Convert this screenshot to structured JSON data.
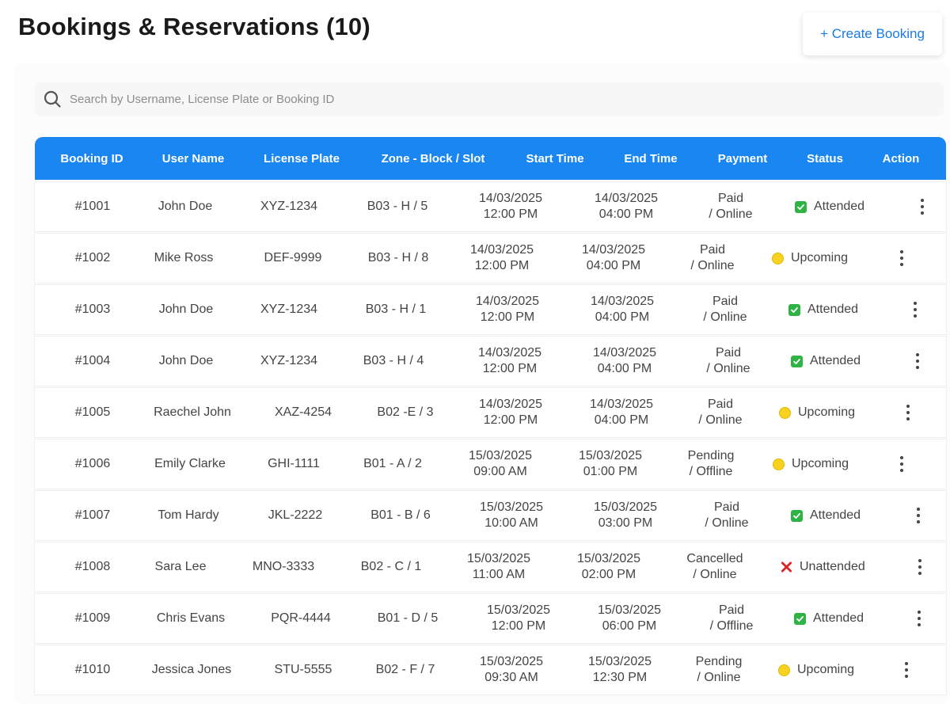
{
  "header": {
    "title": "Bookings & Reservations (10)",
    "create_button": "+ Create Booking"
  },
  "search": {
    "placeholder": "Search by Username, License Plate or Booking ID",
    "value": ""
  },
  "colors": {
    "accent": "#1a86f2",
    "attended": "#2fb344",
    "upcoming": "#f8d21e",
    "unattended": "#e02424"
  },
  "table": {
    "columns": [
      "Booking ID",
      "User Name",
      "License Plate",
      "Zone - Block / Slot",
      "Start Time",
      "End Time",
      "Payment",
      "Status",
      "Action"
    ],
    "rows": [
      {
        "id": "#1001",
        "user": "John Doe",
        "plate": "XYZ-1234",
        "zone": "B03 - H / 5",
        "start_date": "14/03/2025",
        "start_time": "12:00 PM",
        "end_date": "14/03/2025",
        "end_time": "04:00 PM",
        "pay_status": "Paid",
        "pay_mode": "/ Online",
        "status": "Attended",
        "status_icon": "check-box-icon"
      },
      {
        "id": "#1002",
        "user": "Mike Ross",
        "plate": "DEF-9999",
        "zone": "B03 - H / 8",
        "start_date": "14/03/2025",
        "start_time": "12:00 PM",
        "end_date": "14/03/2025",
        "end_time": "04:00 PM",
        "pay_status": "Paid",
        "pay_mode": "/ Online",
        "status": "Upcoming",
        "status_icon": "yellow-circle-icon"
      },
      {
        "id": "#1003",
        "user": "John Doe",
        "plate": "XYZ-1234",
        "zone": "B03 - H / 1",
        "start_date": "14/03/2025",
        "start_time": "12:00 PM",
        "end_date": "14/03/2025",
        "end_time": "04:00 PM",
        "pay_status": "Paid",
        "pay_mode": "/ Online",
        "status": "Attended",
        "status_icon": "check-box-icon"
      },
      {
        "id": "#1004",
        "user": "John Doe",
        "plate": "XYZ-1234",
        "zone": "B03 - H / 4",
        "start_date": "14/03/2025",
        "start_time": "12:00 PM",
        "end_date": "14/03/2025",
        "end_time": "04:00 PM",
        "pay_status": "Paid",
        "pay_mode": "/ Online",
        "status": "Attended",
        "status_icon": "check-box-icon"
      },
      {
        "id": "#1005",
        "user": "Raechel John",
        "plate": "XAZ-4254",
        "zone": "B02 -E / 3",
        "start_date": "14/03/2025",
        "start_time": "12:00 PM",
        "end_date": "14/03/2025",
        "end_time": "04:00 PM",
        "pay_status": "Paid",
        "pay_mode": "/ Online",
        "status": "Upcoming",
        "status_icon": "yellow-circle-icon"
      },
      {
        "id": "#1006",
        "user": "Emily Clarke",
        "plate": "GHI-1111",
        "zone": "B01 - A / 2",
        "start_date": "15/03/2025",
        "start_time": "09:00 AM",
        "end_date": "15/03/2025",
        "end_time": "01:00 PM",
        "pay_status": "Pending",
        "pay_mode": "/ Offline",
        "status": "Upcoming",
        "status_icon": "yellow-circle-icon"
      },
      {
        "id": "#1007",
        "user": "Tom Hardy",
        "plate": "JKL-2222",
        "zone": "B01 - B / 6",
        "start_date": "15/03/2025",
        "start_time": "10:00 AM",
        "end_date": "15/03/2025",
        "end_time": "03:00 PM",
        "pay_status": "Paid",
        "pay_mode": "/ Online",
        "status": "Attended",
        "status_icon": "check-box-icon"
      },
      {
        "id": "#1008",
        "user": "Sara Lee",
        "plate": "MNO-3333",
        "zone": "B02 - C / 1",
        "start_date": "15/03/2025",
        "start_time": "11:00 AM",
        "end_date": "15/03/2025",
        "end_time": "02:00 PM",
        "pay_status": "Cancelled",
        "pay_mode": "/ Online",
        "status": "Unattended",
        "status_icon": "red-cross-icon"
      },
      {
        "id": "#1009",
        "user": "Chris Evans",
        "plate": "PQR-4444",
        "zone": "B01 - D / 5",
        "start_date": "15/03/2025",
        "start_time": "12:00 PM",
        "end_date": "15/03/2025",
        "end_time": "06:00 PM",
        "pay_status": "Paid",
        "pay_mode": "/ Offline",
        "status": "Attended",
        "status_icon": "check-box-icon"
      },
      {
        "id": "#1010",
        "user": "Jessica Jones",
        "plate": "STU-5555",
        "zone": "B02 - F / 7",
        "start_date": "15/03/2025",
        "start_time": "09:30 AM",
        "end_date": "15/03/2025",
        "end_time": "12:30 PM",
        "pay_status": "Pending",
        "pay_mode": "/ Online",
        "status": "Upcoming",
        "status_icon": "yellow-circle-icon"
      }
    ]
  }
}
